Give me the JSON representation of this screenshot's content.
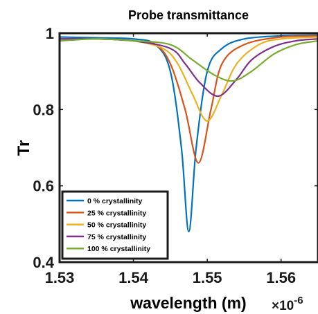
{
  "chart_data": {
    "type": "line",
    "title": "Probe transmittance",
    "xlabel": "wavelength (m)",
    "ylabel": "Tr",
    "x_multiplier_base": "×10",
    "x_multiplier_exponent": "-6",
    "xlim": [
      1.53,
      1.565
    ],
    "ylim": [
      0.4,
      1.0
    ],
    "xticks": [
      1.53,
      1.54,
      1.55,
      1.56
    ],
    "xtick_labels": [
      "1.53",
      "1.54",
      "1.55",
      "1.56"
    ],
    "yticks": [
      0.4,
      0.6,
      0.8,
      1.0
    ],
    "ytick_labels": [
      "0.4",
      "0.6",
      "0.8",
      "1"
    ],
    "grid": false,
    "legend_placement": "bottom-left",
    "series": [
      {
        "name": "0 % crystallinity",
        "color": "#0072BD",
        "x": [
          1.53,
          1.535,
          1.54,
          1.543,
          1.545,
          1.5465,
          1.5475,
          1.5485,
          1.55,
          1.552,
          1.555,
          1.56,
          1.565
        ],
        "y": [
          0.99,
          0.988,
          0.985,
          0.97,
          0.9,
          0.7,
          0.48,
          0.7,
          0.9,
          0.96,
          0.985,
          0.993,
          0.995
        ]
      },
      {
        "name": "25 % crystallinity",
        "color": "#D95319",
        "x": [
          1.53,
          1.535,
          1.54,
          1.543,
          1.545,
          1.547,
          1.5488,
          1.5505,
          1.552,
          1.555,
          1.56,
          1.565
        ],
        "y": [
          0.985,
          0.985,
          0.98,
          0.97,
          0.92,
          0.8,
          0.66,
          0.8,
          0.92,
          0.97,
          0.99,
          0.993
        ]
      },
      {
        "name": "50 % crystallinity",
        "color": "#EDB120",
        "x": [
          1.53,
          1.535,
          1.54,
          1.544,
          1.546,
          1.548,
          1.55,
          1.552,
          1.554,
          1.557,
          1.56,
          1.565
        ],
        "y": [
          0.985,
          0.985,
          0.98,
          0.96,
          0.92,
          0.84,
          0.77,
          0.84,
          0.92,
          0.97,
          0.985,
          0.99
        ]
      },
      {
        "name": "75 % crystallinity",
        "color": "#7E2F8E",
        "x": [
          1.53,
          1.535,
          1.54,
          1.545,
          1.547,
          1.549,
          1.5515,
          1.554,
          1.556,
          1.559,
          1.562,
          1.565
        ],
        "y": [
          0.985,
          0.985,
          0.98,
          0.96,
          0.92,
          0.87,
          0.835,
          0.88,
          0.93,
          0.965,
          0.98,
          0.985
        ]
      },
      {
        "name": "100 % crystallinity",
        "color": "#77AC30",
        "x": [
          1.53,
          1.535,
          1.54,
          1.545,
          1.548,
          1.551,
          1.5535,
          1.556,
          1.559,
          1.562,
          1.565
        ],
        "y": [
          0.98,
          0.985,
          0.98,
          0.97,
          0.93,
          0.89,
          0.875,
          0.9,
          0.945,
          0.97,
          0.98
        ]
      }
    ]
  }
}
